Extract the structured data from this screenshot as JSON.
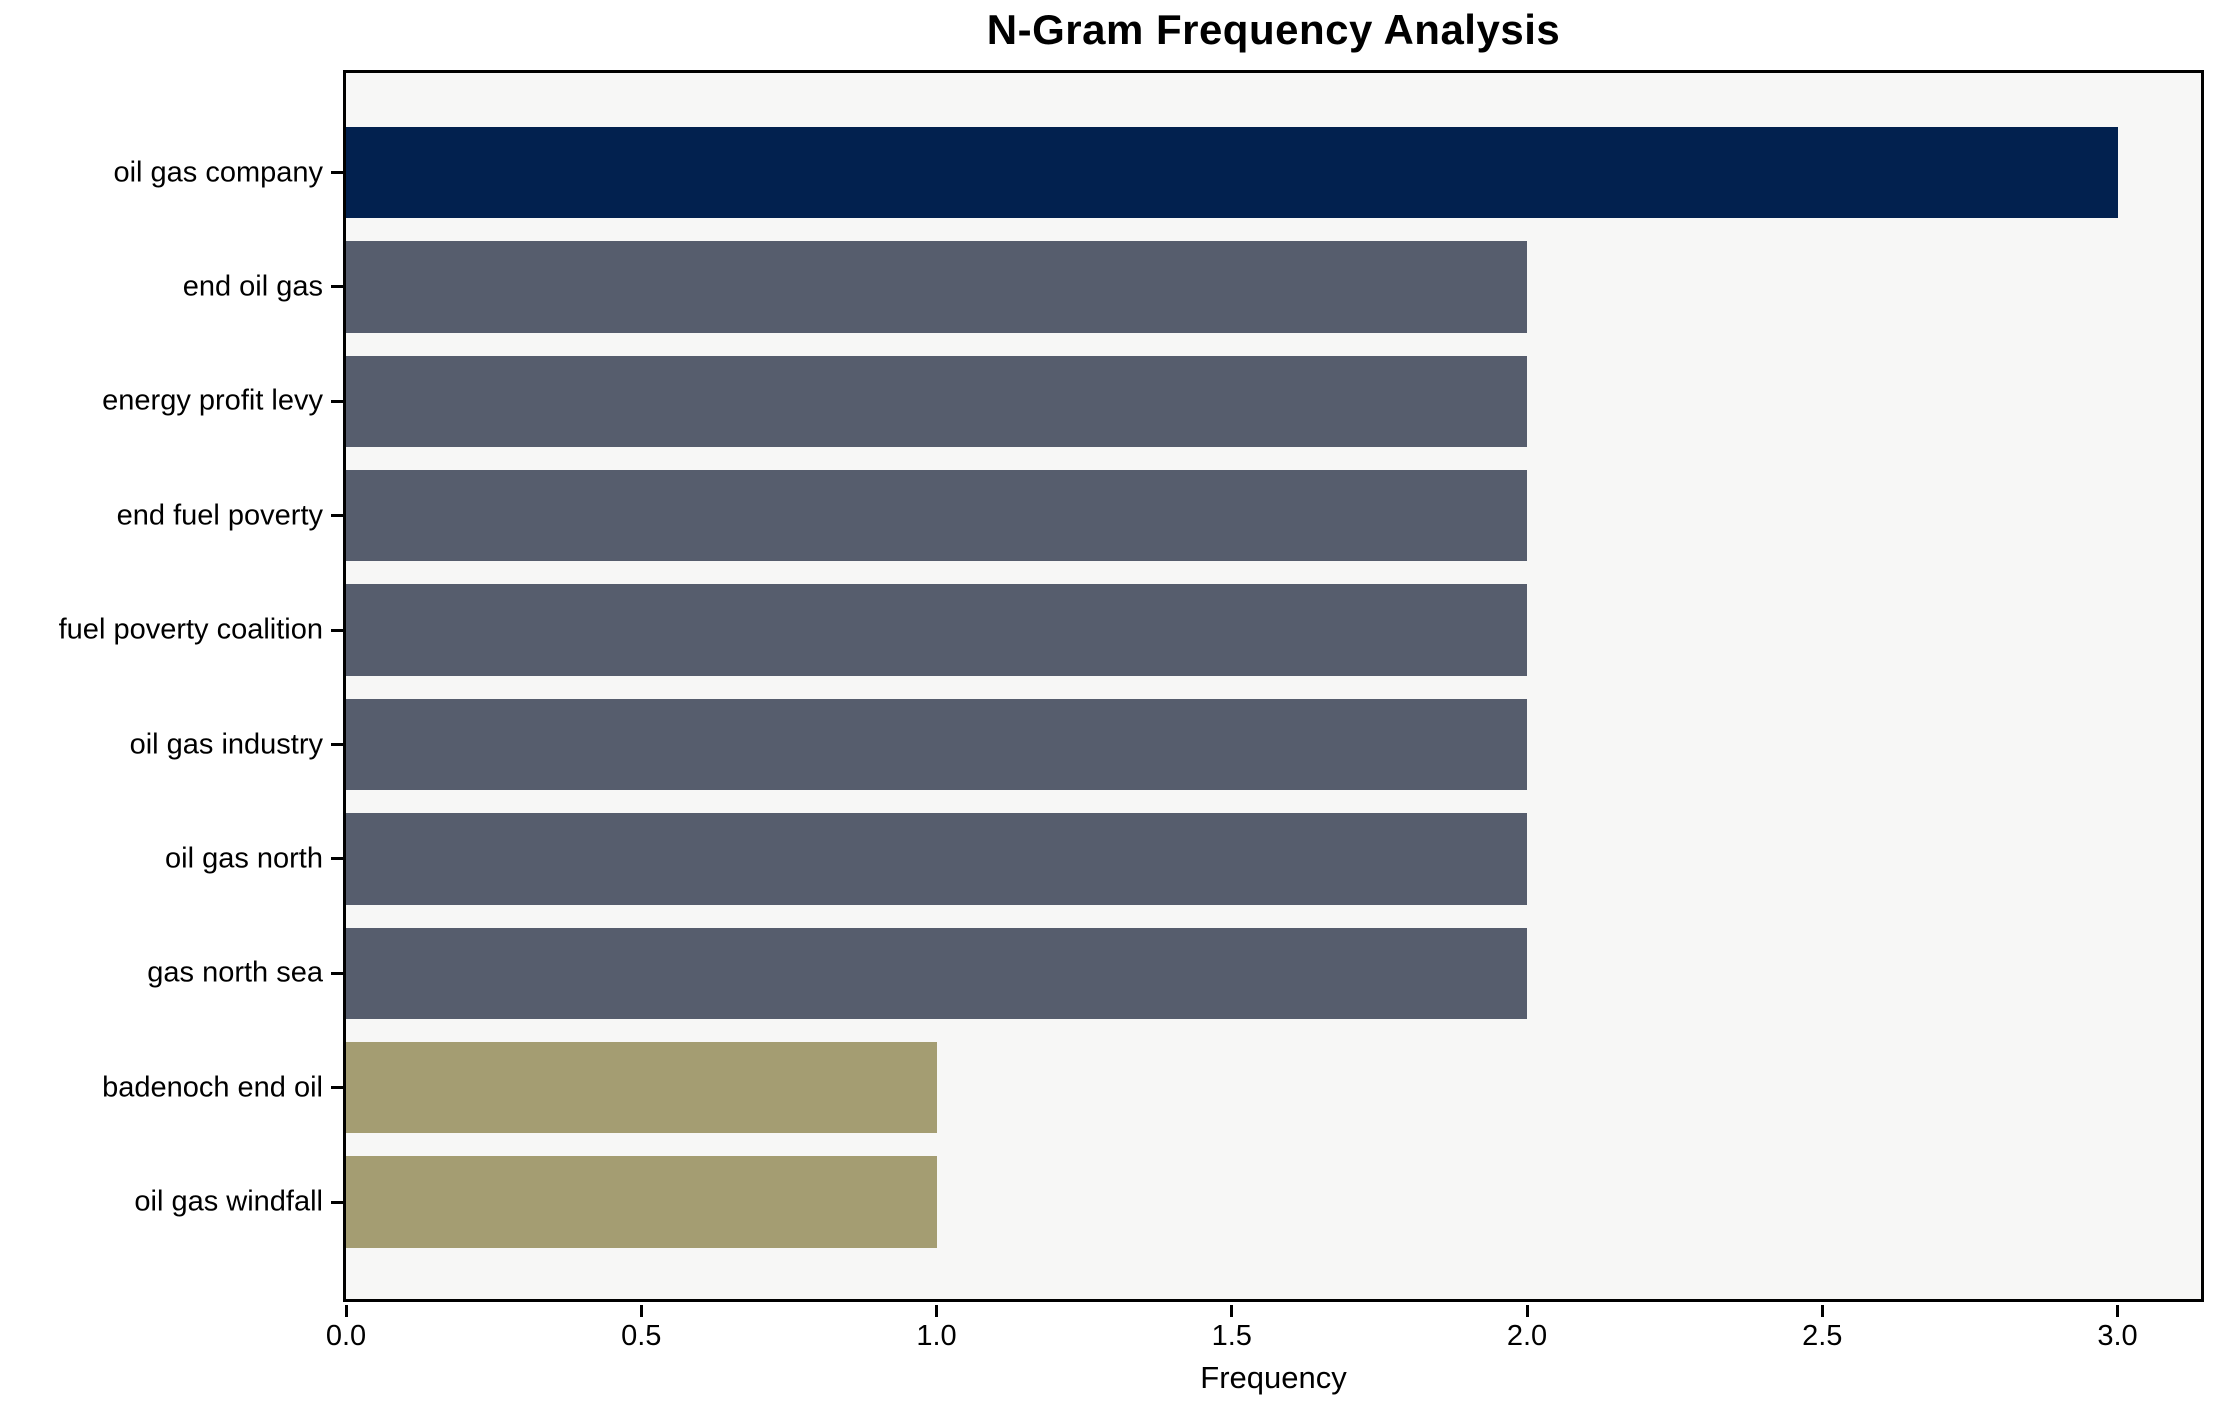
{
  "chart_data": {
    "type": "bar",
    "orientation": "horizontal",
    "title": "N-Gram Frequency Analysis",
    "xlabel": "Frequency",
    "ylabel": "",
    "categories": [
      "oil gas company",
      "end oil gas",
      "energy profit levy",
      "end fuel poverty",
      "fuel poverty coalition",
      "oil gas industry",
      "oil gas north",
      "gas north sea",
      "badenoch end oil",
      "oil gas windfall"
    ],
    "values": [
      3,
      2,
      2,
      2,
      2,
      2,
      2,
      2,
      1,
      1
    ],
    "bar_colors": [
      "#02214F",
      "#565D6D",
      "#565D6D",
      "#565D6D",
      "#565D6D",
      "#565D6D",
      "#565D6D",
      "#565D6D",
      "#A49D72",
      "#A49D72"
    ],
    "xlim": [
      0,
      3.15
    ],
    "xticks": {
      "values": [
        0,
        0.5,
        1,
        1.5,
        2,
        2.5,
        3
      ],
      "labels": [
        "0.0",
        "0.5",
        "1.0",
        "1.5",
        "2.0",
        "2.5",
        "3.0"
      ]
    },
    "grid": false,
    "legend": null,
    "colors": {
      "figure_bg": "#FFFFFF",
      "plot_bg": "#F7F7F6",
      "spine": "#000000",
      "text": "#000000"
    }
  }
}
